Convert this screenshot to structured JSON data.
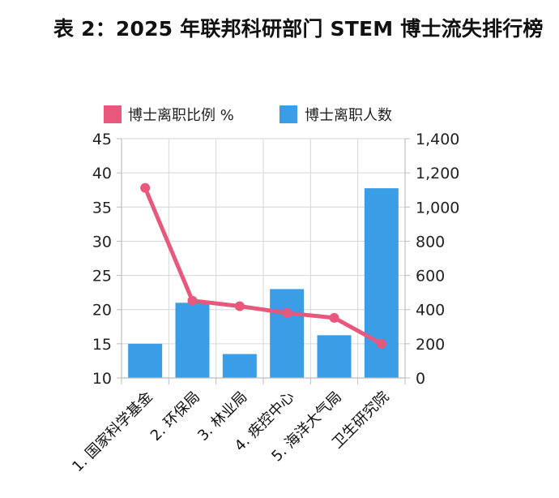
{
  "title": "表 2：2025 年联邦科研部门 STEM 博士流失排行榜",
  "chart_data": {
    "type": "bar",
    "categories": [
      "1. 国家科学基金",
      "2. 环保局",
      "3. 林业局",
      "4. 疾控中心",
      "5. 海洋大气局",
      "卫生研究院"
    ],
    "series": [
      {
        "name": "博士离职比例 %",
        "type": "line",
        "axis": "left",
        "values": [
          37.8,
          21.3,
          20.5,
          19.5,
          18.8,
          15.0
        ]
      },
      {
        "name": "博士离职人数",
        "type": "bar",
        "axis": "right",
        "values": [
          200,
          440,
          140,
          520,
          250,
          1110
        ]
      }
    ],
    "y_left": {
      "ylim": [
        10,
        45
      ],
      "ticks": [
        "10",
        "15",
        "20",
        "25",
        "30",
        "35",
        "40",
        "45"
      ]
    },
    "y_right": {
      "ylim": [
        0,
        1400
      ],
      "ticks": [
        "0",
        "200",
        "400",
        "600",
        "800",
        "1,000",
        "1,200",
        "1,400"
      ]
    },
    "colors": {
      "line": "#e8587c",
      "bar": "#3a9de6",
      "grid": "#d6d6d6"
    },
    "grid": true,
    "legend": "top"
  }
}
